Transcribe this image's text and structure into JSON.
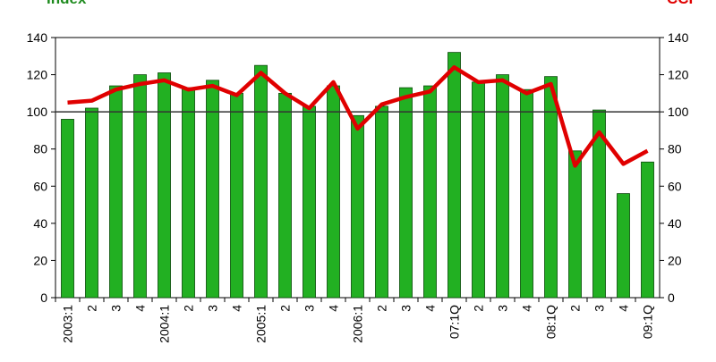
{
  "chart_data": {
    "type": "bar_line",
    "categories": [
      "2003:1",
      "2",
      "3",
      "4",
      "2004:1",
      "2",
      "3",
      "4",
      "2005:1",
      "2",
      "3",
      "4",
      "2006:1",
      "2",
      "3",
      "4",
      "07:1Q",
      "2",
      "3",
      "4",
      "08:1Q",
      "2",
      "3",
      "4",
      "09:1Q"
    ],
    "series": [
      {
        "name": "Index",
        "color": "#22b022",
        "type": "bar",
        "axis": "y",
        "values": [
          96,
          102,
          114,
          120,
          121,
          113,
          117,
          110,
          125,
          110,
          103,
          114,
          98,
          103,
          113,
          114,
          132,
          116,
          120,
          112,
          119,
          79,
          101,
          56,
          73
        ]
      },
      {
        "name": "CCI",
        "color": "#e00000",
        "type": "line",
        "axis": "y2",
        "values": [
          105,
          106,
          112,
          115,
          117,
          112,
          114,
          109,
          121,
          110,
          102,
          116,
          91,
          104,
          108,
          111,
          124,
          116,
          117,
          110,
          115,
          71,
          89,
          72,
          79
        ]
      }
    ],
    "ylim": [
      0,
      140
    ],
    "yticks": [
      0,
      20,
      40,
      60,
      80,
      100,
      120,
      140
    ],
    "y2lim": [
      0,
      140
    ],
    "y2ticks": [
      0,
      20,
      40,
      60,
      80,
      100,
      120,
      140
    ],
    "reference_line": 100
  }
}
